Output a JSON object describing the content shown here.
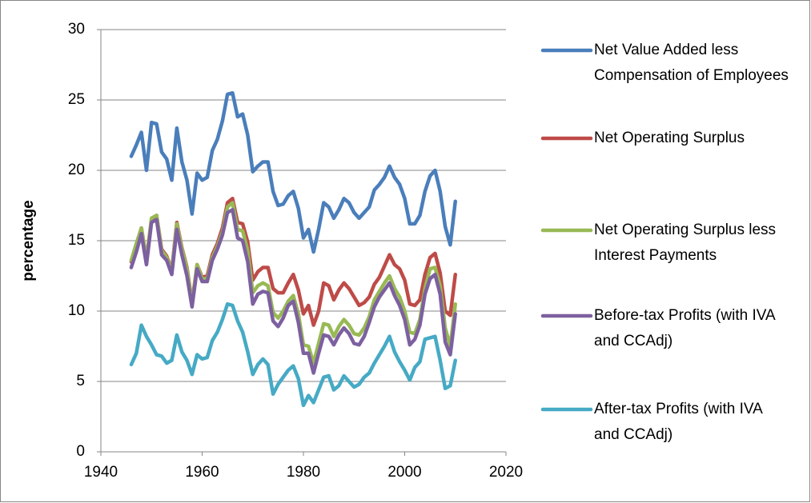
{
  "chart_data": {
    "type": "line",
    "y_label": "percentage",
    "x": [
      1946,
      1947,
      1948,
      1949,
      1950,
      1951,
      1952,
      1953,
      1954,
      1955,
      1956,
      1957,
      1958,
      1959,
      1960,
      1961,
      1962,
      1963,
      1964,
      1965,
      1966,
      1967,
      1968,
      1969,
      1970,
      1971,
      1972,
      1973,
      1974,
      1975,
      1976,
      1977,
      1978,
      1979,
      1980,
      1981,
      1982,
      1983,
      1984,
      1985,
      1986,
      1987,
      1988,
      1989,
      1990,
      1991,
      1992,
      1993,
      1994,
      1995,
      1996,
      1997,
      1998,
      1999,
      2000,
      2001,
      2002,
      2003,
      2004,
      2005,
      2006,
      2007,
      2008,
      2009,
      2010
    ],
    "xlim": [
      1940,
      2020
    ],
    "xticks": [
      1940,
      1960,
      1980,
      2000,
      2020
    ],
    "ylim": [
      0,
      30
    ],
    "yticks": [
      0,
      5,
      10,
      15,
      20,
      25,
      30
    ],
    "grid": true,
    "legend": "right",
    "series": [
      {
        "name": "Net Value Added less Compensation of Employees",
        "color": "#4a7ebb",
        "values": [
          21.0,
          21.8,
          22.7,
          20.0,
          23.4,
          23.3,
          21.3,
          20.8,
          19.3,
          23.0,
          20.6,
          19.3,
          16.9,
          19.8,
          19.3,
          19.5,
          21.4,
          22.2,
          23.5,
          25.4,
          25.5,
          23.8,
          24.0,
          22.5,
          19.9,
          20.3,
          20.6,
          20.6,
          18.5,
          17.5,
          17.6,
          18.2,
          18.5,
          17.3,
          15.2,
          15.8,
          14.2,
          15.8,
          17.7,
          17.4,
          16.6,
          17.2,
          18.0,
          17.7,
          17.0,
          16.6,
          17.0,
          17.4,
          18.6,
          19.0,
          19.5,
          20.3,
          19.5,
          19.0,
          18.0,
          16.2,
          16.2,
          16.8,
          18.5,
          19.6,
          20.0,
          18.5,
          16.0,
          14.7,
          17.8
        ]
      },
      {
        "name": "Net Operating Surplus",
        "color": "#be4b48",
        "values": [
          13.5,
          14.7,
          15.9,
          13.7,
          16.5,
          16.8,
          14.4,
          13.9,
          12.9,
          16.3,
          14.5,
          13.1,
          10.6,
          13.3,
          12.4,
          12.5,
          14.0,
          14.8,
          15.9,
          17.7,
          18.0,
          16.3,
          16.2,
          14.9,
          12.2,
          12.8,
          13.1,
          13.1,
          11.6,
          11.3,
          11.3,
          12.0,
          12.6,
          11.5,
          9.8,
          10.4,
          9.0,
          10.0,
          12.0,
          11.8,
          10.8,
          11.5,
          12.0,
          11.6,
          11.0,
          10.4,
          10.6,
          11.0,
          11.9,
          12.4,
          13.2,
          14.0,
          13.3,
          13.0,
          12.2,
          10.5,
          10.4,
          10.8,
          12.6,
          13.8,
          14.1,
          12.7,
          10.0,
          9.7,
          12.6
        ]
      },
      {
        "name": "Net Operating Surplus less Interest Payments",
        "color": "#98b954",
        "values": [
          13.6,
          14.8,
          15.9,
          13.6,
          16.6,
          16.8,
          14.3,
          13.8,
          12.8,
          16.2,
          14.4,
          13.0,
          10.5,
          13.3,
          12.3,
          12.3,
          13.8,
          14.6,
          15.6,
          17.4,
          17.7,
          15.8,
          15.7,
          14.3,
          11.3,
          11.8,
          12.0,
          11.8,
          9.9,
          9.5,
          10.0,
          10.7,
          11.1,
          9.8,
          7.6,
          7.5,
          6.3,
          7.7,
          9.1,
          9.0,
          8.2,
          8.9,
          9.4,
          9.0,
          8.4,
          8.3,
          8.8,
          9.6,
          10.8,
          11.4,
          12.0,
          12.5,
          11.6,
          11.0,
          10.0,
          8.5,
          8.4,
          9.4,
          11.6,
          13.0,
          13.1,
          11.8,
          8.8,
          7.5,
          10.5
        ]
      },
      {
        "name": "Before-tax Profits (with IVA and CCAdj)",
        "color": "#7d60a0",
        "values": [
          13.1,
          14.2,
          15.5,
          13.3,
          16.3,
          16.5,
          14.0,
          13.6,
          12.6,
          15.8,
          14.0,
          12.5,
          10.3,
          13.0,
          12.1,
          12.1,
          13.6,
          14.4,
          15.4,
          17.0,
          17.2,
          15.2,
          15.0,
          13.5,
          10.5,
          11.2,
          11.4,
          11.3,
          9.3,
          8.9,
          9.5,
          10.4,
          10.7,
          9.2,
          7.0,
          7.0,
          5.6,
          7.0,
          8.3,
          8.2,
          7.6,
          8.3,
          8.8,
          8.4,
          7.7,
          7.6,
          8.2,
          9.2,
          10.3,
          11.0,
          11.5,
          12.0,
          11.1,
          10.4,
          9.4,
          7.6,
          8.0,
          9.0,
          11.2,
          12.3,
          12.6,
          11.2,
          7.8,
          6.9,
          9.8
        ]
      },
      {
        "name": "After-tax Profits (with IVA and CCAdj)",
        "color": "#46aac5",
        "values": [
          6.2,
          7.0,
          9.0,
          8.2,
          7.6,
          6.9,
          6.8,
          6.3,
          6.5,
          8.3,
          7.1,
          6.5,
          5.5,
          6.9,
          6.6,
          6.7,
          7.9,
          8.5,
          9.4,
          10.5,
          10.4,
          9.3,
          8.5,
          7.1,
          5.5,
          6.2,
          6.6,
          6.2,
          4.1,
          4.8,
          5.3,
          5.8,
          6.1,
          5.2,
          3.3,
          4.0,
          3.5,
          4.4,
          5.3,
          5.4,
          4.4,
          4.7,
          5.4,
          5.0,
          4.6,
          4.8,
          5.3,
          5.6,
          6.3,
          6.9,
          7.5,
          8.2,
          7.1,
          6.4,
          5.8,
          5.1,
          6.0,
          6.4,
          8.0,
          8.1,
          8.2,
          6.5,
          4.5,
          4.7,
          6.5
        ]
      }
    ]
  }
}
